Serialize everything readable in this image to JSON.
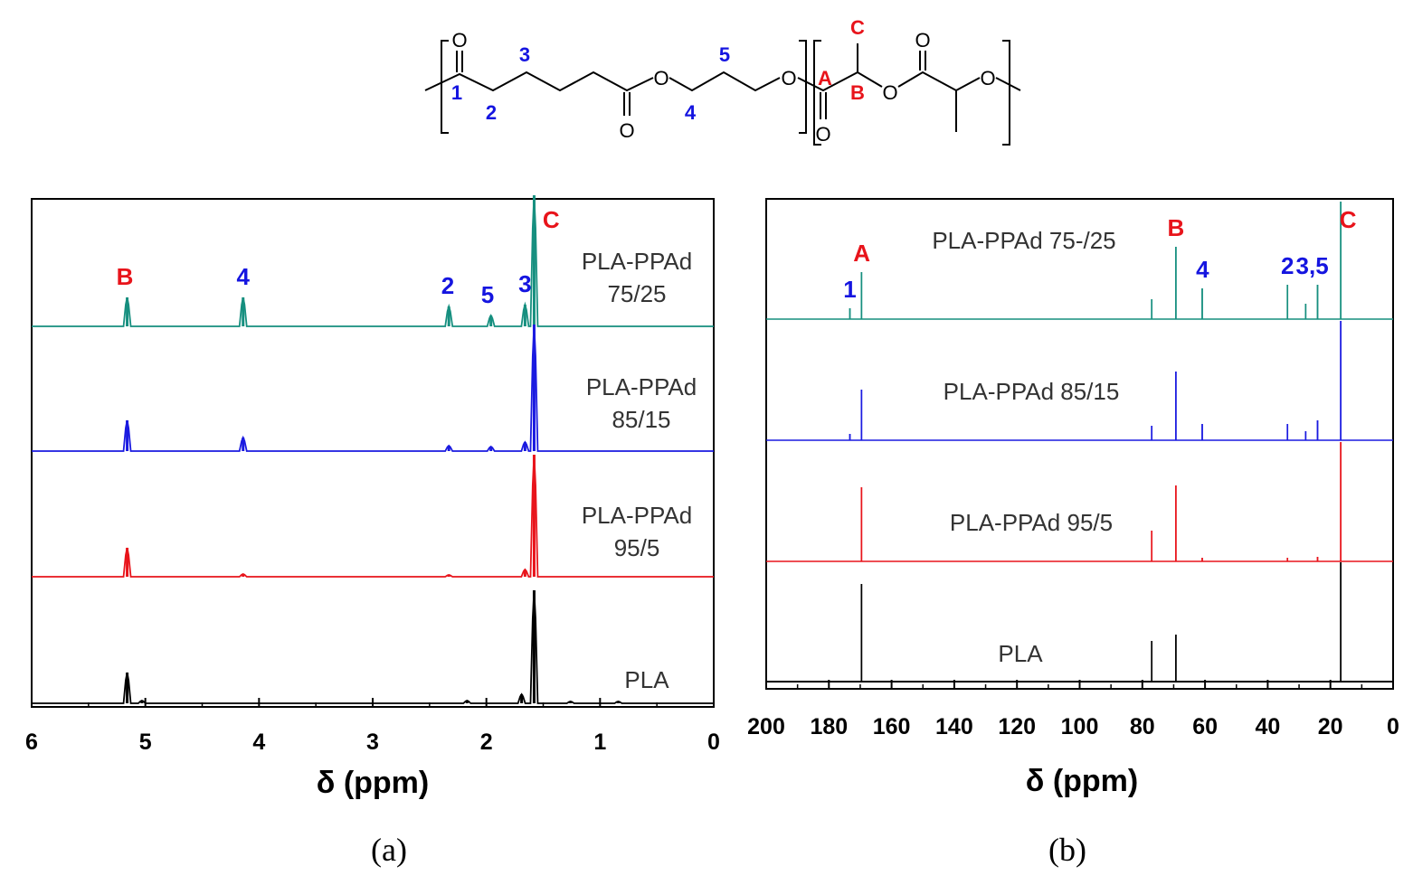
{
  "structure": {
    "atoms": {
      "oxygen": "O"
    },
    "blue_labels": [
      "1",
      "2",
      "3",
      "4",
      "5"
    ],
    "red_labels": [
      "A",
      "B",
      "C"
    ]
  },
  "colors": {
    "black": "#000000",
    "red": "#e8141b",
    "blue": "#1515e0",
    "teal": "#168f7f",
    "peak_red": "#e8141b",
    "peak_blue": "#1a1ae0"
  },
  "chart_data": [
    {
      "type": "line",
      "panel_label": "(a)",
      "xlabel": "δ (ppm)",
      "xlim": [
        6,
        0
      ],
      "x_reversed": true,
      "x_ticks": [
        "6",
        "5",
        "4",
        "3",
        "2",
        "1",
        "0"
      ],
      "series": [
        {
          "name": "PLA-PPAd 75/25",
          "label_lines": [
            "PLA-PPAd",
            "75/25"
          ],
          "color": "#168f7f",
          "peaks": [
            {
              "x": 5.16,
              "h": 32
            },
            {
              "x": 4.14,
              "h": 32
            },
            {
              "x": 2.33,
              "h": 22
            },
            {
              "x": 1.96,
              "h": 12
            },
            {
              "x": 1.66,
              "h": 24
            },
            {
              "x": 1.58,
              "h": 145
            }
          ],
          "peak_labels": [
            {
              "x": 5.18,
              "text": "B",
              "color": "red"
            },
            {
              "x": 4.14,
              "text": "4",
              "color": "blue"
            },
            {
              "x": 2.34,
              "text": "2",
              "color": "blue"
            },
            {
              "x": 1.99,
              "text": "5",
              "color": "blue"
            },
            {
              "x": 1.66,
              "text": "3",
              "color": "blue"
            },
            {
              "x": 1.43,
              "text": "C",
              "color": "red"
            }
          ]
        },
        {
          "name": "PLA-PPAd 85/15",
          "label_lines": [
            "PLA-PPAd",
            "85/15"
          ],
          "color": "#1a1ae0",
          "peaks": [
            {
              "x": 5.16,
              "h": 34
            },
            {
              "x": 4.14,
              "h": 15
            },
            {
              "x": 2.33,
              "h": 6
            },
            {
              "x": 1.96,
              "h": 5
            },
            {
              "x": 1.66,
              "h": 10
            },
            {
              "x": 1.58,
              "h": 140
            }
          ]
        },
        {
          "name": "PLA-PPAd 95/5",
          "label_lines": [
            "PLA-PPAd",
            "95/5"
          ],
          "color": "#e8141b",
          "peaks": [
            {
              "x": 5.16,
              "h": 32
            },
            {
              "x": 4.14,
              "h": 3
            },
            {
              "x": 2.33,
              "h": 2
            },
            {
              "x": 1.66,
              "h": 8
            },
            {
              "x": 1.58,
              "h": 135
            }
          ]
        },
        {
          "name": "PLA",
          "label_lines": [
            "PLA"
          ],
          "color": "#000000",
          "peaks": [
            {
              "x": 5.16,
              "h": 34
            },
            {
              "x": 5.03,
              "h": 3
            },
            {
              "x": 2.17,
              "h": 3
            },
            {
              "x": 1.69,
              "h": 10
            },
            {
              "x": 1.58,
              "h": 125
            },
            {
              "x": 1.26,
              "h": 2
            },
            {
              "x": 0.84,
              "h": 2
            }
          ]
        }
      ]
    },
    {
      "type": "line",
      "panel_label": "(b)",
      "xlabel": "δ (ppm)",
      "xlim": [
        200,
        0
      ],
      "x_reversed": true,
      "x_ticks": [
        "200",
        "180",
        "160",
        "140",
        "120",
        "100",
        "80",
        "60",
        "40",
        "20",
        "0"
      ],
      "series": [
        {
          "name": "PLA-PPAd 75-/25",
          "label_lines": [
            "PLA-PPAd 75-/25"
          ],
          "color": "#168f7f",
          "peaks": [
            {
              "x": 173.3,
              "h": 12
            },
            {
              "x": 169.6,
              "h": 52
            },
            {
              "x": 77.0,
              "h": 22
            },
            {
              "x": 69.3,
              "h": 80
            },
            {
              "x": 60.9,
              "h": 34
            },
            {
              "x": 33.7,
              "h": 38
            },
            {
              "x": 27.9,
              "h": 17
            },
            {
              "x": 24.1,
              "h": 38
            },
            {
              "x": 16.7,
              "h": 130
            }
          ],
          "peak_labels": [
            {
              "x": 173.3,
              "text": "1",
              "color": "blue"
            },
            {
              "x": 169.5,
              "text": "A",
              "color": "red"
            },
            {
              "x": 69.3,
              "text": "B",
              "color": "red"
            },
            {
              "x": 60.8,
              "text": "4",
              "color": "blue"
            },
            {
              "x": 33.7,
              "text": "2",
              "color": "blue"
            },
            {
              "x": 25.8,
              "text": "3,5",
              "color": "blue"
            },
            {
              "x": 14.4,
              "text": "C",
              "color": "red"
            }
          ]
        },
        {
          "name": "PLA-PPAd 85/15",
          "label_lines": [
            "PLA-PPAd 85/15"
          ],
          "color": "#1a1ae0",
          "peaks": [
            {
              "x": 173.3,
              "h": 7
            },
            {
              "x": 169.6,
              "h": 56
            },
            {
              "x": 77.0,
              "h": 16
            },
            {
              "x": 69.3,
              "h": 76
            },
            {
              "x": 60.9,
              "h": 18
            },
            {
              "x": 33.7,
              "h": 18
            },
            {
              "x": 27.9,
              "h": 10
            },
            {
              "x": 24.1,
              "h": 22
            },
            {
              "x": 16.7,
              "h": 132
            }
          ]
        },
        {
          "name": "PLA-PPAd 95/5",
          "label_lines": [
            "PLA-PPAd 95/5"
          ],
          "color": "#e8141b",
          "peaks": [
            {
              "x": 169.6,
              "h": 82
            },
            {
              "x": 77.0,
              "h": 34
            },
            {
              "x": 69.3,
              "h": 84
            },
            {
              "x": 60.9,
              "h": 4
            },
            {
              "x": 33.7,
              "h": 4
            },
            {
              "x": 24.1,
              "h": 5
            },
            {
              "x": 16.7,
              "h": 132
            }
          ]
        },
        {
          "name": "PLA",
          "label_lines": [
            "PLA"
          ],
          "color": "#000000",
          "peaks": [
            {
              "x": 169.6,
              "h": 108
            },
            {
              "x": 77.0,
              "h": 45
            },
            {
              "x": 69.3,
              "h": 52
            },
            {
              "x": 16.7,
              "h": 132
            }
          ]
        }
      ]
    }
  ]
}
